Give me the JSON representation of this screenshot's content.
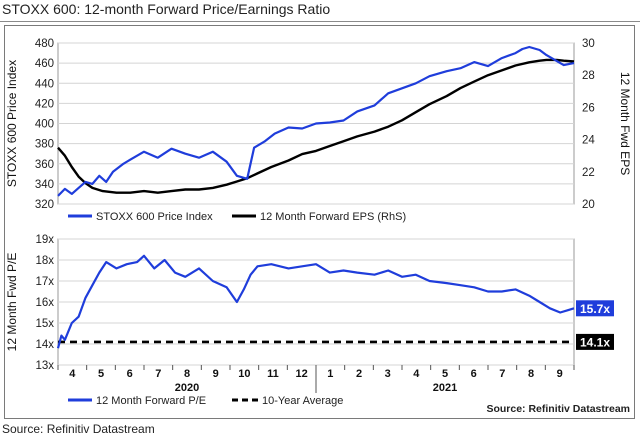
{
  "page": {
    "title": "STOXX 600: 12-month Forward Price/Earnings Ratio",
    "footer": "Source: Refinitiv Datastream"
  },
  "chart_data": [
    {
      "type": "line",
      "title": "",
      "ylabel": "STOXX 600 Price Index",
      "y2label": "12 Month Fwd EPS",
      "ylim": [
        320,
        480
      ],
      "yticks": [
        320,
        340,
        360,
        380,
        400,
        420,
        440,
        460,
        480
      ],
      "y2lim": [
        20,
        30
      ],
      "y2ticks": [
        20,
        22,
        24,
        26,
        28,
        30
      ],
      "x_range": [
        2020.25,
        2021.75
      ],
      "grid": true,
      "legend": "bottom",
      "series": [
        {
          "name": "STOXX 600 Price Index",
          "axis": "left",
          "color": "#1f3ddb",
          "x": [
            2020.25,
            2020.27,
            2020.29,
            2020.31,
            2020.33,
            2020.35,
            2020.37,
            2020.39,
            2020.41,
            2020.44,
            2020.46,
            2020.48,
            2020.5,
            2020.54,
            2020.58,
            2020.62,
            2020.66,
            2020.7,
            2020.74,
            2020.77,
            2020.8,
            2020.82,
            2020.85,
            2020.88,
            2020.92,
            2020.96,
            2021.0,
            2021.04,
            2021.08,
            2021.12,
            2021.17,
            2021.21,
            2021.25,
            2021.29,
            2021.33,
            2021.38,
            2021.42,
            2021.46,
            2021.5,
            2021.54,
            2021.58,
            2021.6,
            2021.62,
            2021.65,
            2021.67,
            2021.7,
            2021.72,
            2021.75
          ],
          "values": [
            328,
            335,
            330,
            336,
            342,
            340,
            348,
            342,
            352,
            360,
            364,
            368,
            372,
            366,
            375,
            370,
            366,
            372,
            362,
            348,
            345,
            376,
            382,
            390,
            396,
            395,
            400,
            401,
            403,
            412,
            418,
            430,
            435,
            440,
            447,
            452,
            455,
            461,
            457,
            465,
            470,
            474,
            476,
            473,
            468,
            462,
            458,
            460
          ]
        },
        {
          "name": "12 Month Forward EPS (RhS)",
          "axis": "right",
          "color": "#000000",
          "x": [
            2020.25,
            2020.27,
            2020.29,
            2020.31,
            2020.33,
            2020.35,
            2020.38,
            2020.42,
            2020.46,
            2020.5,
            2020.54,
            2020.58,
            2020.62,
            2020.66,
            2020.7,
            2020.74,
            2020.77,
            2020.8,
            2020.83,
            2020.87,
            2020.92,
            2020.96,
            2021.0,
            2021.04,
            2021.08,
            2021.12,
            2021.17,
            2021.21,
            2021.25,
            2021.29,
            2021.33,
            2021.38,
            2021.42,
            2021.46,
            2021.5,
            2021.54,
            2021.58,
            2021.62,
            2021.65,
            2021.67,
            2021.7,
            2021.72,
            2021.75
          ],
          "values": [
            23.5,
            23.0,
            22.3,
            21.7,
            21.3,
            21.0,
            20.8,
            20.7,
            20.7,
            20.8,
            20.7,
            20.8,
            20.9,
            20.9,
            21.0,
            21.2,
            21.4,
            21.6,
            21.9,
            22.3,
            22.7,
            23.1,
            23.3,
            23.6,
            23.9,
            24.2,
            24.5,
            24.8,
            25.2,
            25.7,
            26.2,
            26.7,
            27.2,
            27.6,
            28.0,
            28.3,
            28.6,
            28.8,
            28.9,
            28.95,
            28.95,
            28.9,
            28.85
          ]
        }
      ]
    },
    {
      "type": "line",
      "title": "",
      "ylabel": "12 Month Fwd P/E",
      "ylim": [
        13,
        19
      ],
      "yticks": [
        13,
        14,
        15,
        16,
        17,
        18,
        19
      ],
      "tick_suffix": "x",
      "x_range": [
        2020.25,
        2021.75
      ],
      "xtick_labels": [
        "4",
        "5",
        "6",
        "7",
        "8",
        "9",
        "10",
        "11",
        "12",
        "1",
        "2",
        "3",
        "4",
        "5",
        "6",
        "7",
        "8",
        "9"
      ],
      "year_labels": [
        "2020",
        "2021"
      ],
      "grid": true,
      "legend": "bottom",
      "source_note": "Source: Refinitiv Datastream",
      "end_labels": [
        "15.7x",
        "14.1x"
      ],
      "series": [
        {
          "name": "12 Month Forward P/E",
          "color": "#1f3ddb",
          "x": [
            2020.25,
            2020.26,
            2020.27,
            2020.29,
            2020.31,
            2020.33,
            2020.35,
            2020.37,
            2020.39,
            2020.42,
            2020.45,
            2020.48,
            2020.5,
            2020.53,
            2020.56,
            2020.59,
            2020.62,
            2020.66,
            2020.7,
            2020.74,
            2020.77,
            2020.79,
            2020.81,
            2020.83,
            2020.87,
            2020.92,
            2020.96,
            2021.0,
            2021.04,
            2021.08,
            2021.12,
            2021.17,
            2021.21,
            2021.25,
            2021.29,
            2021.33,
            2021.38,
            2021.42,
            2021.46,
            2021.5,
            2021.54,
            2021.58,
            2021.62,
            2021.65,
            2021.68,
            2021.71,
            2021.73,
            2021.75
          ],
          "values": [
            13.8,
            14.4,
            14.2,
            15.0,
            15.3,
            16.2,
            16.8,
            17.4,
            17.9,
            17.6,
            17.8,
            17.9,
            18.2,
            17.6,
            18.0,
            17.4,
            17.2,
            17.6,
            17.0,
            16.7,
            16.0,
            16.6,
            17.3,
            17.7,
            17.8,
            17.6,
            17.7,
            17.8,
            17.4,
            17.5,
            17.4,
            17.3,
            17.5,
            17.2,
            17.3,
            17.0,
            16.9,
            16.8,
            16.7,
            16.5,
            16.5,
            16.6,
            16.3,
            16.0,
            15.7,
            15.5,
            15.6,
            15.7
          ]
        },
        {
          "name": "10-Year Average",
          "color": "#000000",
          "dashed": true,
          "x": [
            2020.25,
            2021.75
          ],
          "values": [
            14.1,
            14.1
          ]
        }
      ]
    }
  ]
}
